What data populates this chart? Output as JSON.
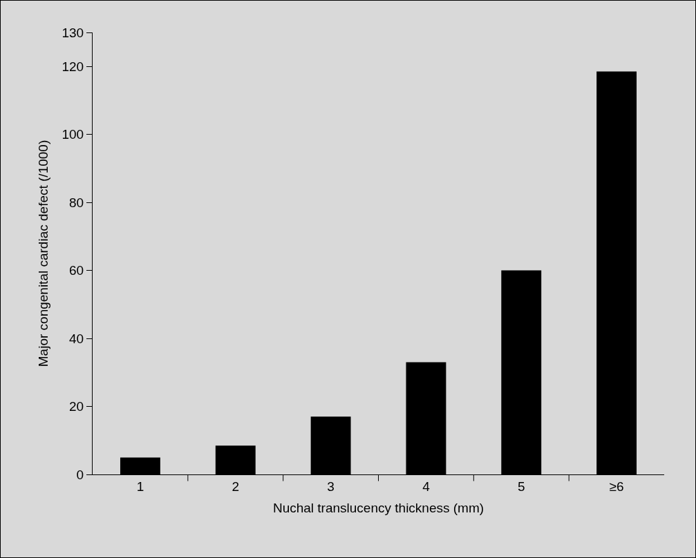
{
  "chart_data": {
    "type": "bar",
    "xlabel": "Nuchal translucency thickness (mm)",
    "ylabel": "Major congenital cardiac defect (/1000)",
    "categories": [
      "1",
      "2",
      "3",
      "4",
      "5",
      "≥6"
    ],
    "values": [
      5,
      8.5,
      17,
      33,
      60,
      118.5
    ],
    "color": "#000000",
    "ylim": [
      0,
      130
    ],
    "yticks": [
      0,
      20,
      40,
      60,
      80,
      100,
      120,
      130
    ],
    "grid": false
  }
}
